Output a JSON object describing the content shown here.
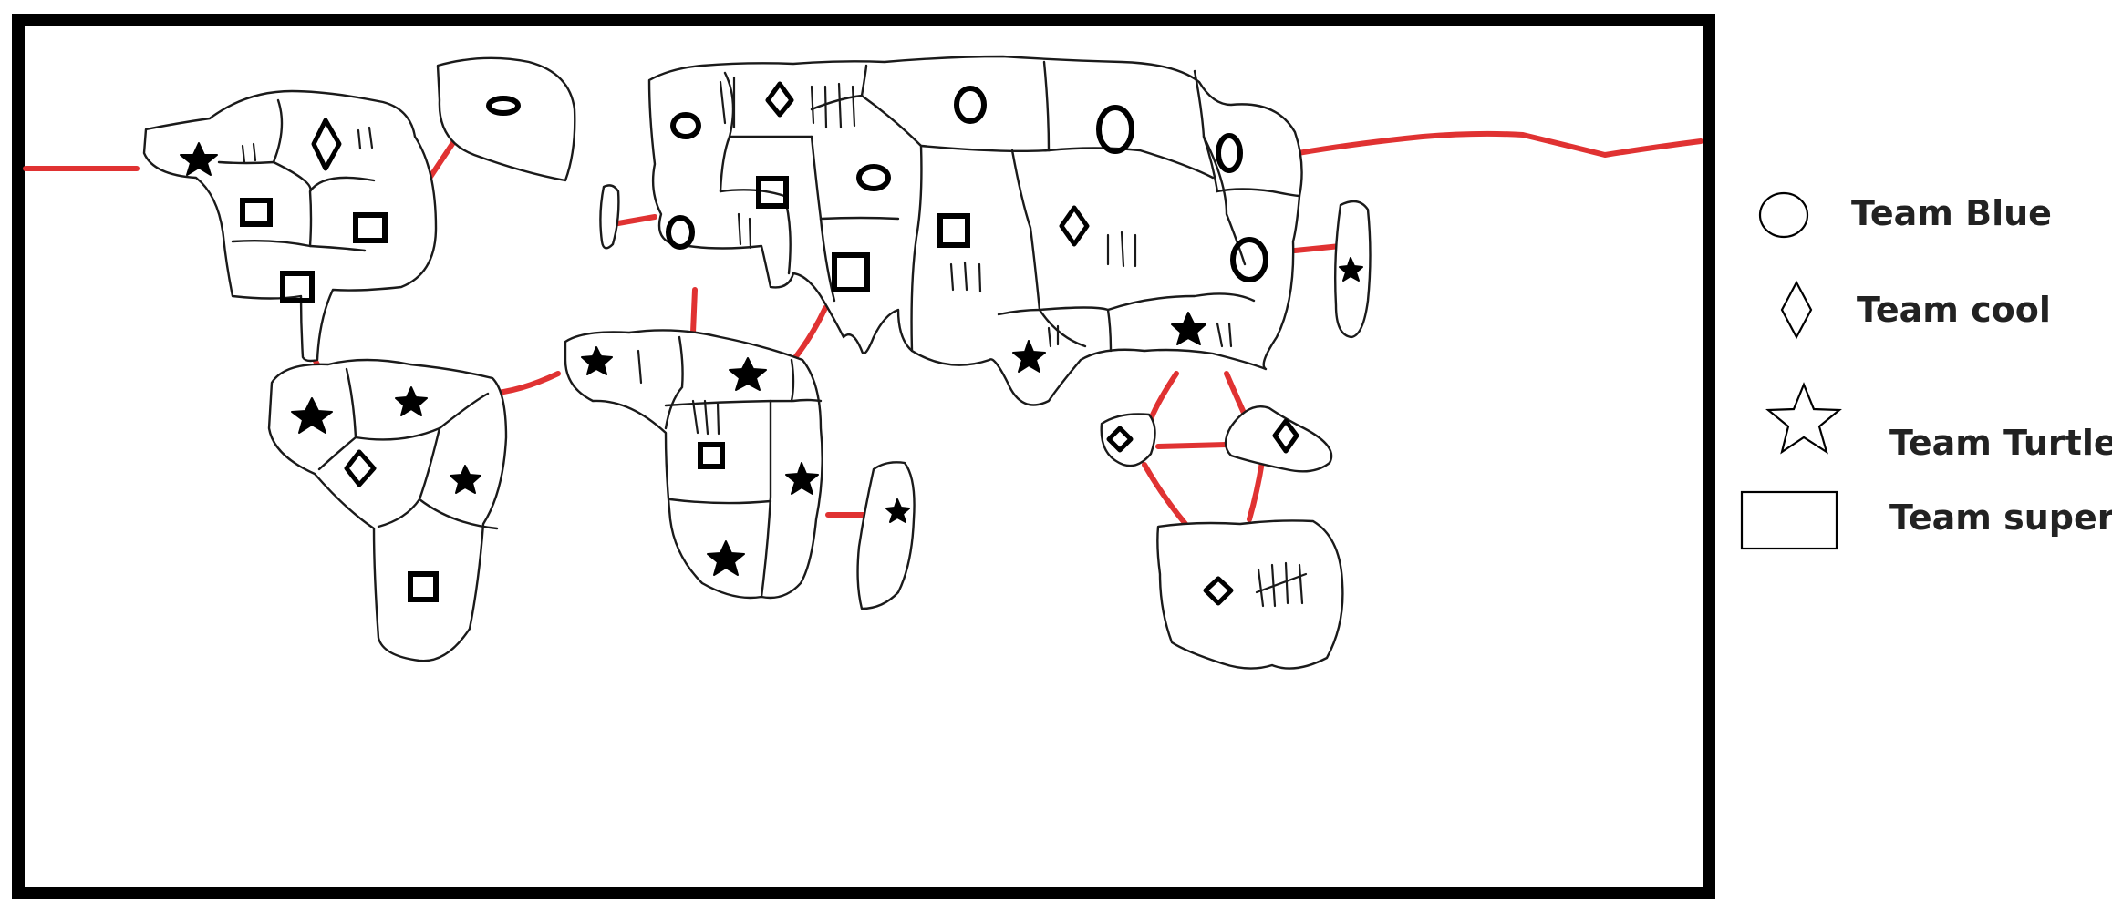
{
  "legend": {
    "items": [
      {
        "shape": "circle-icon",
        "label": "Team Blue"
      },
      {
        "shape": "diamond-icon",
        "label": "Team cool"
      },
      {
        "shape": "star-icon",
        "label": "Team Turtle"
      },
      {
        "shape": "square-icon",
        "label": "Team super"
      }
    ]
  },
  "colors": {
    "frame": "#000000",
    "region_outline": "#1a1a1a",
    "sea_route": "#e03232",
    "background": "#ffffff"
  },
  "map": {
    "territory_count": 44,
    "pieces": [
      {
        "territory": "nw-a",
        "team": "Team Turtle",
        "marker": "star"
      },
      {
        "territory": "nw-b",
        "team": "Team cool",
        "marker": "diamond"
      },
      {
        "territory": "nw-c",
        "team": "Team super",
        "marker": "square"
      },
      {
        "territory": "nw-d",
        "team": "Team super",
        "marker": "square"
      },
      {
        "territory": "nw-e",
        "team": "Team super",
        "marker": "square"
      },
      {
        "territory": "greenland",
        "team": "Team Blue",
        "marker": "circle"
      },
      {
        "territory": "sa-a",
        "team": "Team Turtle",
        "marker": "star"
      },
      {
        "territory": "sa-b",
        "team": "Team Turtle",
        "marker": "star"
      },
      {
        "territory": "sa-c",
        "team": "Team cool",
        "marker": "diamond"
      },
      {
        "territory": "sa-d",
        "team": "Team Turtle",
        "marker": "star"
      },
      {
        "territory": "sa-e",
        "team": "Team super",
        "marker": "square"
      },
      {
        "territory": "eu-a",
        "team": "Team Blue",
        "marker": "circle"
      },
      {
        "territory": "eu-b",
        "team": "Team cool",
        "marker": "diamond"
      },
      {
        "territory": "eu-c",
        "team": "Team Blue",
        "marker": "circle"
      },
      {
        "territory": "eu-d",
        "team": "Team super",
        "marker": "square"
      },
      {
        "territory": "eu-e",
        "team": "Team Blue",
        "marker": "circle"
      },
      {
        "territory": "eu-f",
        "team": "Team super",
        "marker": "square"
      },
      {
        "territory": "as-a",
        "team": "Team Blue",
        "marker": "circle"
      },
      {
        "territory": "as-b",
        "team": "Team Blue",
        "marker": "circle"
      },
      {
        "territory": "as-c",
        "team": "Team Blue",
        "marker": "circle"
      },
      {
        "territory": "as-d",
        "team": "Team super",
        "marker": "square"
      },
      {
        "territory": "as-e",
        "team": "Team cool",
        "marker": "diamond"
      },
      {
        "territory": "as-f",
        "team": "Team Blue",
        "marker": "circle"
      },
      {
        "territory": "as-g",
        "team": "Team Turtle",
        "marker": "star"
      },
      {
        "territory": "as-h",
        "team": "Team Turtle",
        "marker": "star"
      },
      {
        "territory": "japan",
        "team": "Team Turtle",
        "marker": "star"
      },
      {
        "territory": "af-a",
        "team": "Team Turtle",
        "marker": "star"
      },
      {
        "territory": "af-b",
        "team": "Team Turtle",
        "marker": "star"
      },
      {
        "territory": "af-c",
        "team": "Team super",
        "marker": "square"
      },
      {
        "territory": "af-d",
        "team": "Team Turtle",
        "marker": "star"
      },
      {
        "territory": "af-e",
        "team": "Team Turtle",
        "marker": "star"
      },
      {
        "territory": "madagascar",
        "team": "Team Turtle",
        "marker": "star"
      },
      {
        "territory": "oc-a",
        "team": "Team cool",
        "marker": "diamond"
      },
      {
        "territory": "oc-b",
        "team": "Team cool",
        "marker": "diamond"
      },
      {
        "territory": "oc-c",
        "team": "Team cool",
        "marker": "diamond"
      }
    ]
  }
}
